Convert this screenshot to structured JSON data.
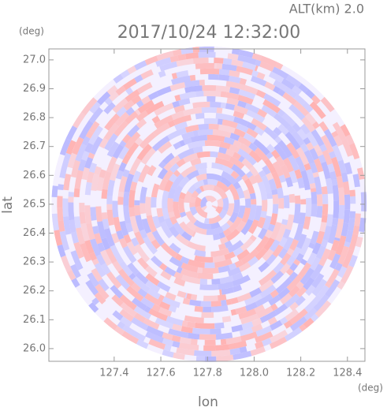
{
  "chart_data": {
    "type": "ppi",
    "title": "2017/10/24 12:32:00",
    "subtitle": "ALT(km)  2.0",
    "x_label": "lon",
    "y_label": "lat",
    "x_unit": "(deg)",
    "y_unit": "(deg)",
    "xlim": [
      127.12,
      128.475
    ],
    "ylim": [
      25.956,
      27.038
    ],
    "xticks": [
      127.4,
      127.6,
      127.8,
      {
        "value": 128,
        "label": "128.0"
      },
      128.2,
      128.4
    ],
    "yticks": [
      {
        "value": 26,
        "label": "26.0"
      },
      26.1,
      26.2,
      26.3,
      26.4,
      26.5,
      26.6,
      26.7,
      26.8,
      26.9,
      {
        "value": 27,
        "label": "27.0"
      }
    ],
    "center": [
      127.807,
      26.5
    ],
    "colors": [
      "#ffb3b3",
      "#b8b8ff",
      "#f4f0ff"
    ]
  }
}
